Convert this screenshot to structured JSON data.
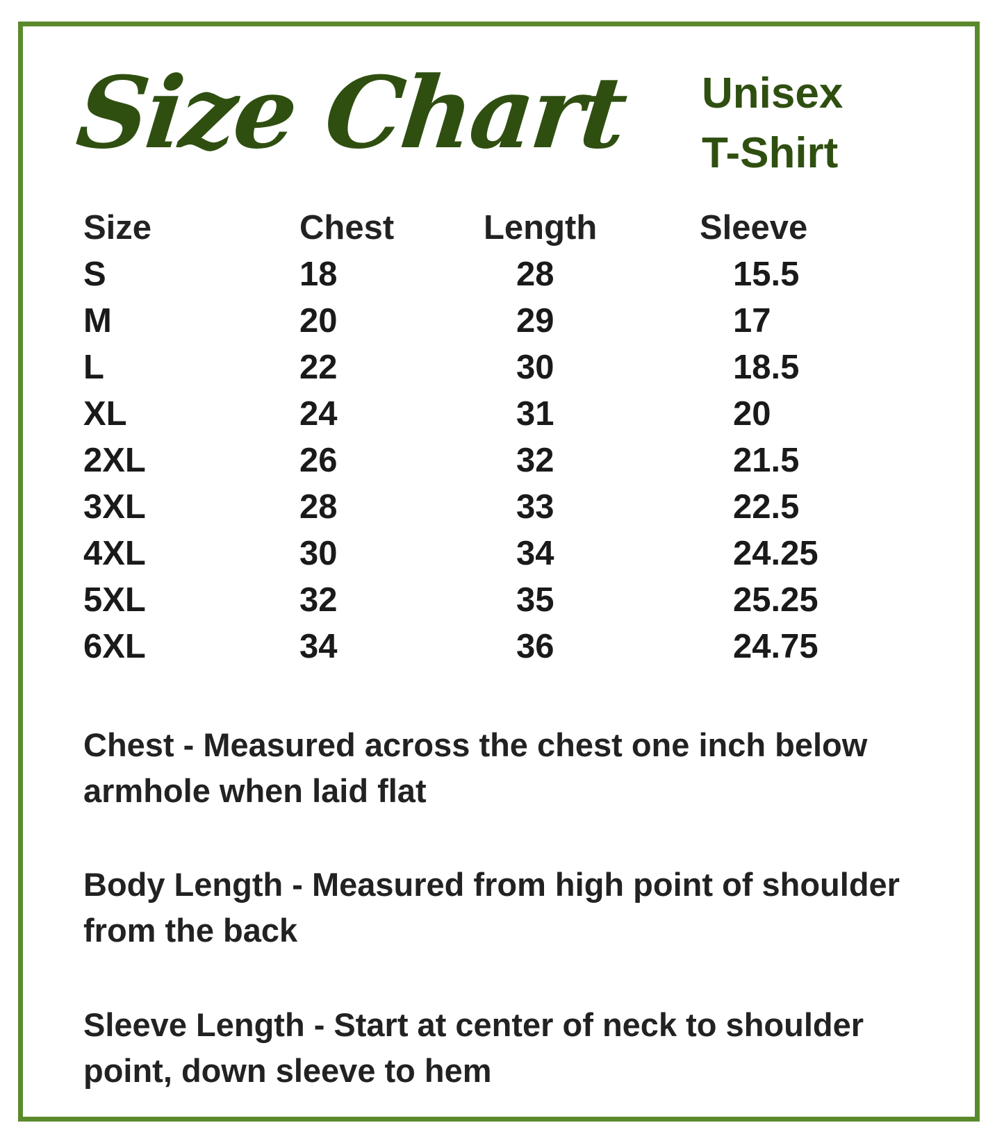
{
  "title": "Size Chart",
  "subtitle": [
    "Unisex",
    "T-Shirt"
  ],
  "colors": {
    "border": "#5b8a2c",
    "title": "#2f4f10",
    "text": "#1a1a1a"
  },
  "table": {
    "headers": [
      "Size",
      "Chest",
      "Length",
      "Sleeve"
    ],
    "rows": [
      [
        "S",
        "18",
        "28",
        "15.5"
      ],
      [
        "M",
        "20",
        "29",
        "17"
      ],
      [
        "L",
        "22",
        "30",
        "18.5"
      ],
      [
        "XL",
        "24",
        "31",
        "20"
      ],
      [
        "2XL",
        "26",
        "32",
        "21.5"
      ],
      [
        "3XL",
        "28",
        "33",
        "22.5"
      ],
      [
        "4XL",
        "30",
        "34",
        "24.25"
      ],
      [
        "5XL",
        "32",
        "35",
        "25.25"
      ],
      [
        "6XL",
        "34",
        "36",
        "24.75"
      ]
    ]
  },
  "notes": [
    "Chest - Measured across the chest one inch below armhole when laid flat",
    "Body Length - Measured from high point of shoulder from the back",
    "Sleeve Length - Start at center of neck to shoulder point, down sleeve to hem"
  ]
}
